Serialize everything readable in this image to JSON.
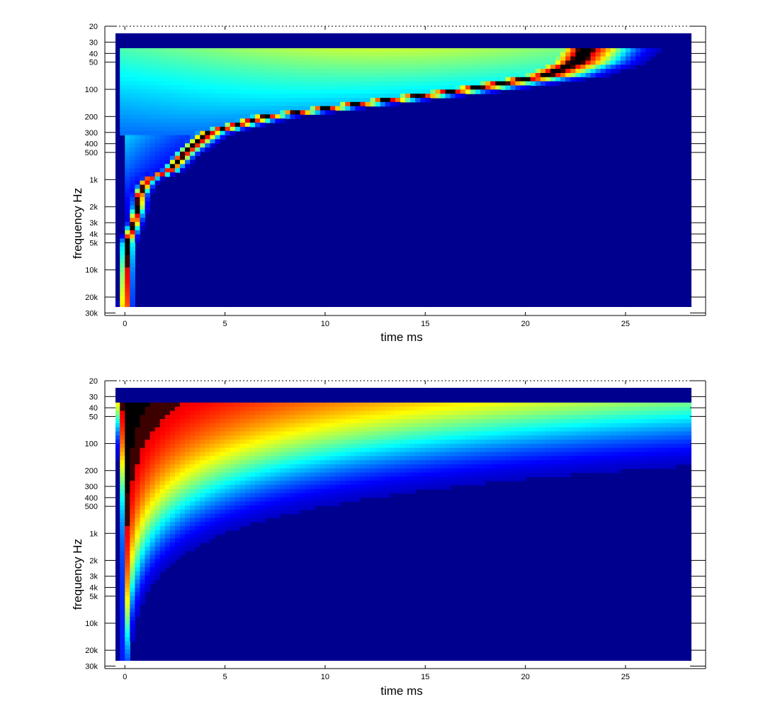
{
  "chart_data": [
    {
      "type": "heatmap",
      "title": "",
      "xlabel": "time   ms",
      "ylabel": "frequency   Hz",
      "xlim": [
        -1,
        29
      ],
      "ylim": [
        20,
        32000
      ],
      "y_scale": "log",
      "y_reversed": true,
      "x_ticks": [
        0,
        5,
        10,
        15,
        20,
        25
      ],
      "x_tick_labels": [
        "0",
        "5",
        "10",
        "15",
        "20",
        "25"
      ],
      "y_ticks": [
        20,
        30,
        40,
        50,
        100,
        200,
        300,
        400,
        500,
        1000,
        2000,
        3000,
        4000,
        5000,
        10000,
        20000,
        30000
      ],
      "y_tick_labels": [
        "20",
        "30",
        "40",
        "50",
        "100",
        "200",
        "300",
        "400",
        "500",
        "1k",
        "2k",
        "3k",
        "4k",
        "5k",
        "10k",
        "20k",
        "30k"
      ],
      "colormap": "jet",
      "data_extent": {
        "time_ms": [
          -1,
          29
        ],
        "freq_hz": [
          35,
          30000
        ]
      },
      "ridge": [
        {
          "f": 30000,
          "t": 0.0
        },
        {
          "f": 10000,
          "t": 0.05
        },
        {
          "f": 5000,
          "t": 0.1
        },
        {
          "f": 3000,
          "t": 0.45
        },
        {
          "f": 2000,
          "t": 0.65
        },
        {
          "f": 1500,
          "t": 0.7
        },
        {
          "f": 1000,
          "t": 1.1
        },
        {
          "f": 800,
          "t": 2.2
        },
        {
          "f": 500,
          "t": 3.0
        },
        {
          "f": 300,
          "t": 4.2
        },
        {
          "f": 200,
          "t": 7.0
        },
        {
          "f": 150,
          "t": 11.0
        },
        {
          "f": 100,
          "t": 17.0
        },
        {
          "f": 70,
          "t": 21.0
        },
        {
          "f": 50,
          "t": 22.5
        },
        {
          "f": 35,
          "t": 23.0
        }
      ],
      "low_freq_spread": "wide"
    },
    {
      "type": "heatmap",
      "title": "",
      "xlabel": "time   ms",
      "ylabel": "frequency   Hz",
      "xlim": [
        -1,
        29
      ],
      "ylim": [
        20,
        32000
      ],
      "y_scale": "log",
      "y_reversed": true,
      "x_ticks": [
        0,
        5,
        10,
        15,
        20,
        25
      ],
      "x_tick_labels": [
        "0",
        "5",
        "10",
        "15",
        "20",
        "25"
      ],
      "y_ticks": [
        20,
        30,
        40,
        50,
        100,
        200,
        300,
        400,
        500,
        1000,
        2000,
        3000,
        4000,
        5000,
        10000,
        20000,
        30000
      ],
      "y_tick_labels": [
        "20",
        "30",
        "40",
        "50",
        "100",
        "200",
        "300",
        "400",
        "500",
        "1k",
        "2k",
        "3k",
        "4k",
        "5k",
        "10k",
        "20k",
        "30k"
      ],
      "colormap": "jet",
      "data_extent": {
        "time_ms": [
          -1,
          29
        ],
        "freq_hz": [
          35,
          30000
        ]
      },
      "ridge": [
        {
          "f": 30000,
          "t": 0.0
        },
        {
          "f": 35,
          "t": 0.0
        }
      ],
      "low_freq_spread": "decaying"
    }
  ]
}
